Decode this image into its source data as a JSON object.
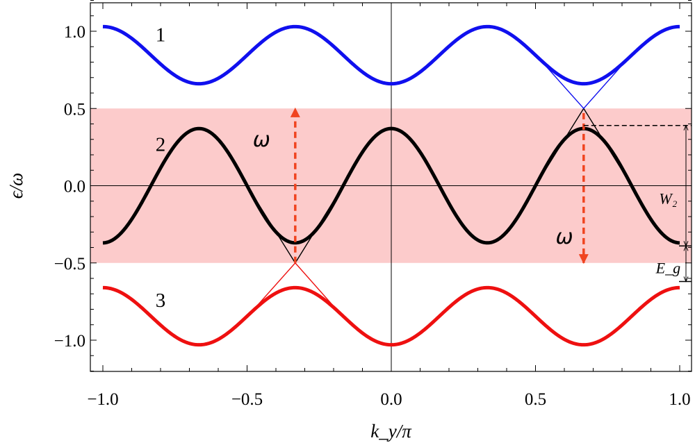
{
  "chart_data": {
    "type": "line",
    "title": "",
    "xlabel": "k_y/π",
    "ylabel": "ϵ/ω",
    "xlim": [
      -1.04,
      1.04
    ],
    "ylim": [
      -1.2,
      1.2
    ],
    "x_ticks": [
      -1.0,
      -0.5,
      0.0,
      0.5,
      1.0
    ],
    "x_tick_labels": [
      "−1.0",
      "−0.5",
      "0.0",
      "0.5",
      "1.0"
    ],
    "y_ticks": [
      -1.0,
      -0.5,
      0.0,
      0.5,
      1.0
    ],
    "y_tick_labels": [
      "−1.0",
      "−0.5",
      "0.0",
      "0.5",
      "1.0"
    ],
    "shaded_band": {
      "ymin": -0.5,
      "ymax": 0.5,
      "color": "#fccbcb"
    },
    "grid": false,
    "zero_lines": true,
    "series": [
      {
        "band": "1",
        "color": "#1010ee",
        "x": [
          -1.0,
          -0.833,
          -0.667,
          -0.5,
          -0.333,
          -0.167,
          0.0,
          0.167,
          0.333,
          0.5,
          0.667,
          0.833,
          1.0
        ],
        "y": [
          1.03,
          0.85,
          0.66,
          0.85,
          1.03,
          0.85,
          0.66,
          0.85,
          1.03,
          0.85,
          0.66,
          0.85,
          1.03
        ]
      },
      {
        "band": "2",
        "color": "#000000",
        "x": [
          -1.0,
          -0.833,
          -0.667,
          -0.5,
          -0.333,
          -0.167,
          0.0,
          0.167,
          0.333,
          0.5,
          0.667,
          0.833,
          1.0
        ],
        "y": [
          -0.37,
          0.0,
          0.37,
          0.0,
          -0.37,
          0.0,
          0.37,
          0.0,
          -0.37,
          0.0,
          0.37,
          0.0,
          -0.37
        ]
      },
      {
        "band": "3",
        "color": "#ee1010",
        "x": [
          -1.0,
          -0.833,
          -0.667,
          -0.5,
          -0.333,
          -0.167,
          0.0,
          0.167,
          0.333,
          0.5,
          0.667,
          0.833,
          1.0
        ],
        "y": [
          -0.66,
          -0.85,
          -1.03,
          -0.85,
          -0.66,
          -0.85,
          -1.03,
          -0.85,
          -0.66,
          -0.85,
          -1.03,
          -0.85,
          -0.66
        ]
      }
    ],
    "band_labels": [
      {
        "text": "1",
        "x": -0.8,
        "y": 0.98
      },
      {
        "text": "2",
        "x": -0.8,
        "y": 0.27
      },
      {
        "text": "3",
        "x": -0.8,
        "y": -0.74
      }
    ],
    "arrows": [
      {
        "from": [
          -0.333,
          -0.5
        ],
        "to": [
          -0.333,
          0.5
        ],
        "color": "#f04420",
        "label": "ω",
        "label_x": -0.45,
        "label_y": 0.3
      },
      {
        "from": [
          0.667,
          0.47
        ],
        "to": [
          0.667,
          -0.5
        ],
        "color": "#f04420",
        "label": "ω",
        "label_x": 0.6,
        "label_y": -0.33
      }
    ],
    "annotations": [
      {
        "text": "W₂",
        "x": 0.96,
        "y": -0.08
      },
      {
        "text": "E_g",
        "x": 0.96,
        "y": -0.53
      }
    ],
    "annotation_levels": [
      0.39,
      -0.39,
      -0.62
    ]
  }
}
